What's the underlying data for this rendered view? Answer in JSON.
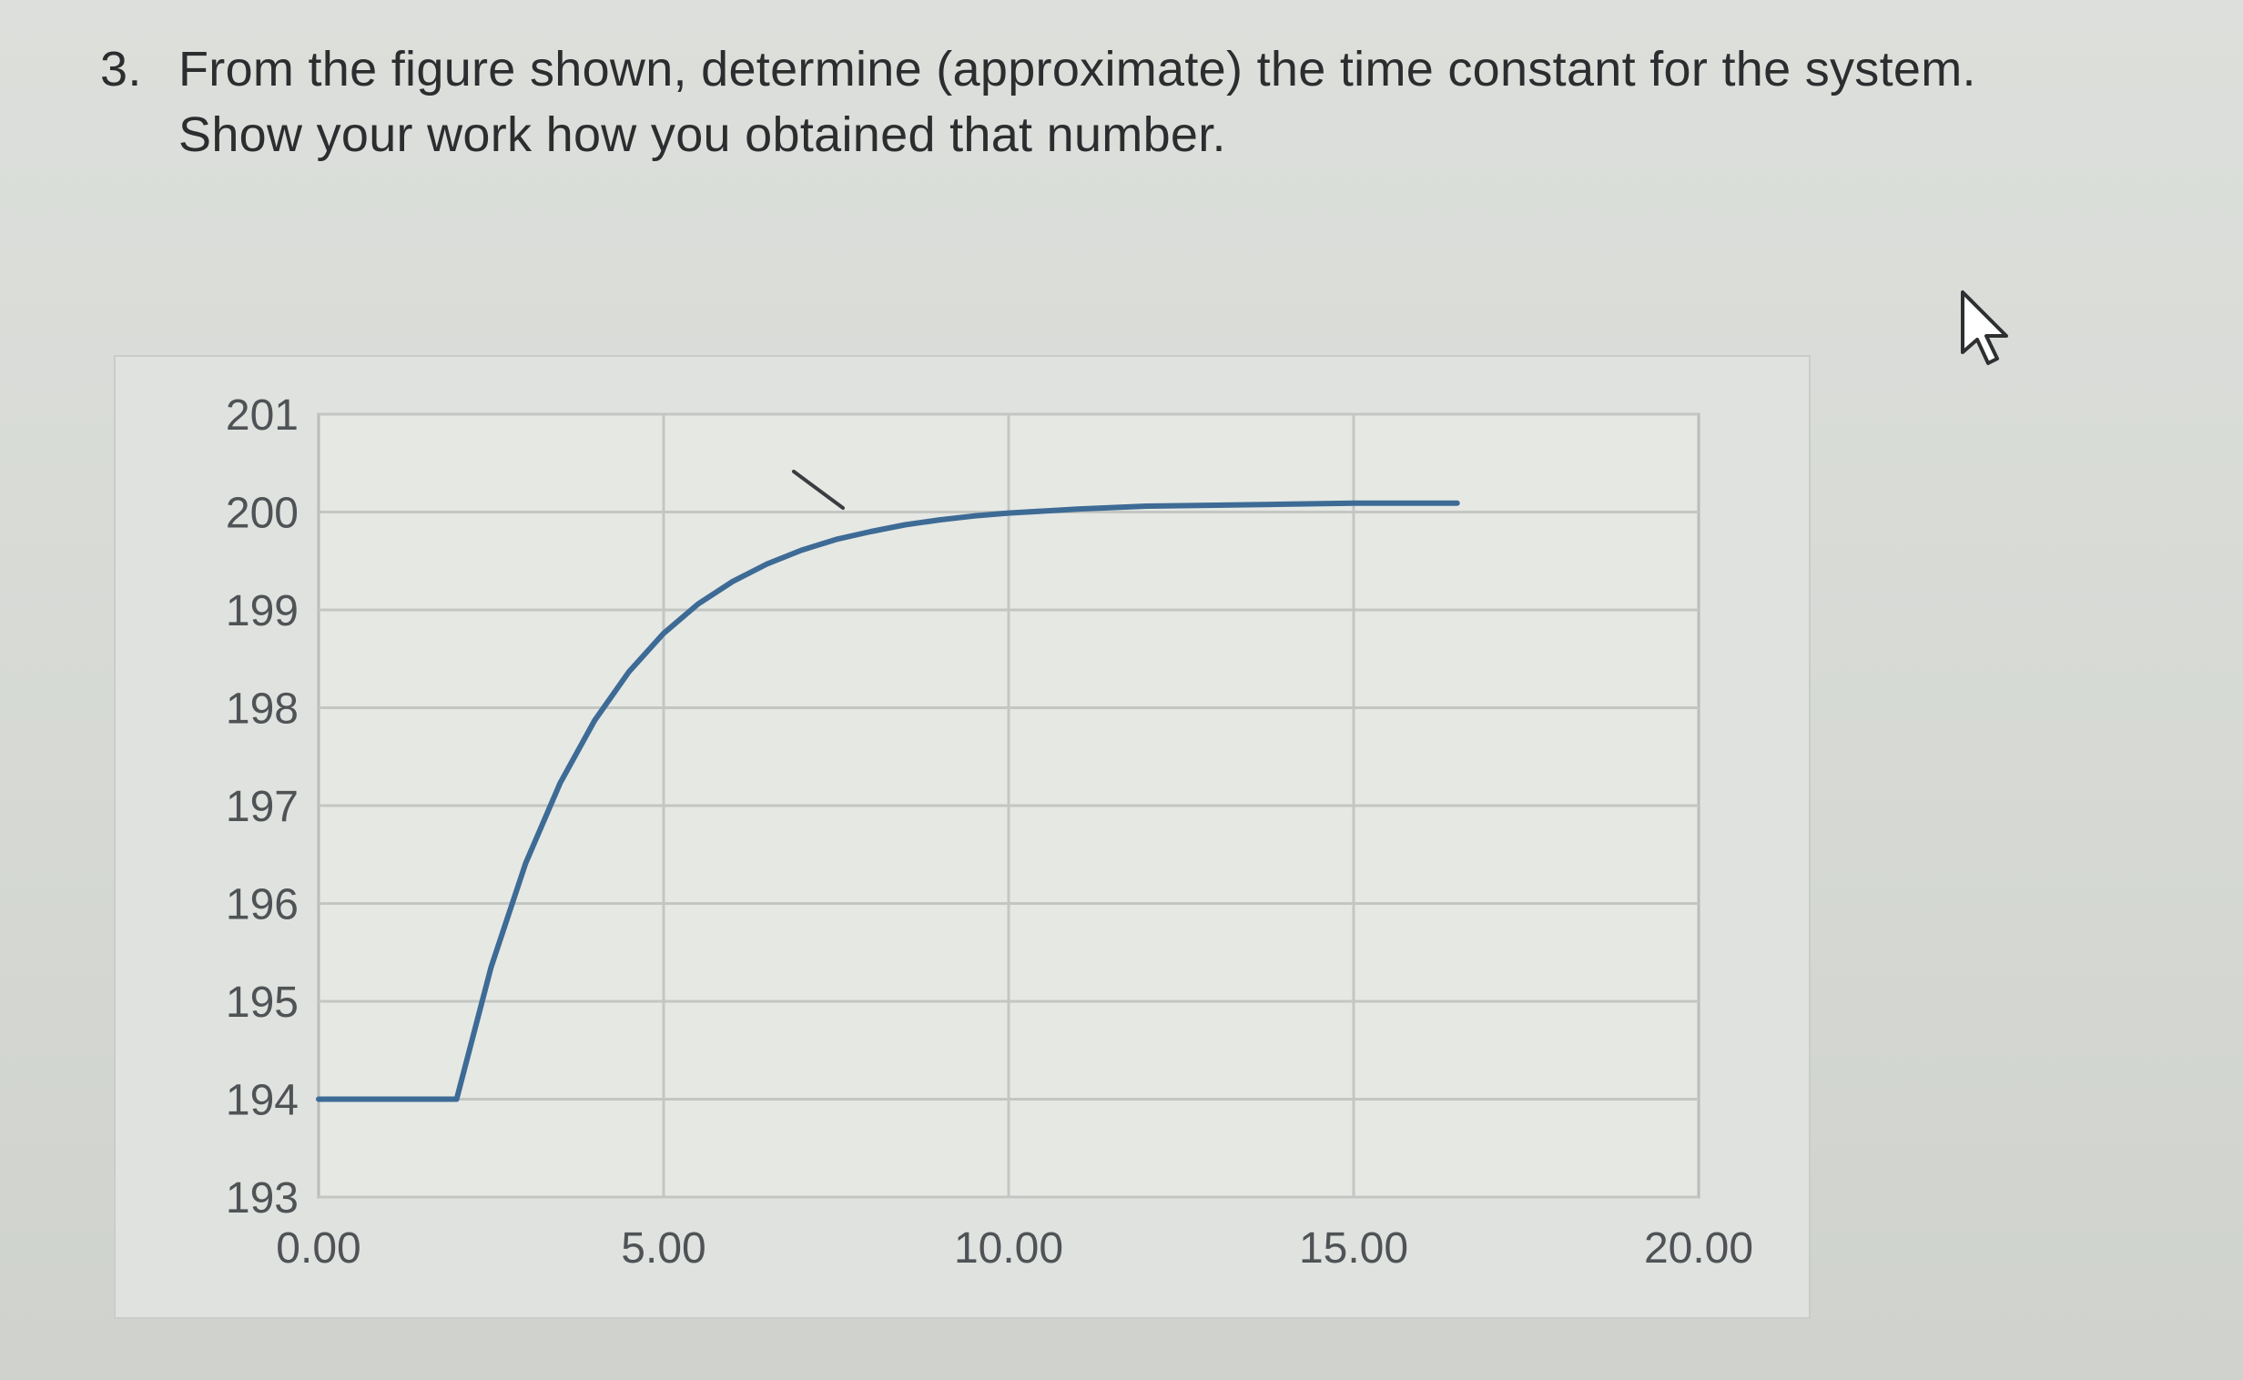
{
  "question": {
    "number": "3.",
    "line1": "From the figure shown, determine (approximate) the time constant for the system.",
    "line2": "Show your work how you obtained that number."
  },
  "chart_data": {
    "type": "line",
    "title": "",
    "xlabel": "",
    "ylabel": "",
    "xlim": [
      0,
      20
    ],
    "ylim": [
      193,
      201
    ],
    "x_ticks": [
      "0.00",
      "5.00",
      "10.00",
      "15.00",
      "20.00"
    ],
    "x_tick_values": [
      0,
      5,
      10,
      15,
      20
    ],
    "y_ticks": [
      "201",
      "200",
      "199",
      "198",
      "197",
      "196",
      "195",
      "194",
      "193"
    ],
    "y_tick_values": [
      201,
      200,
      199,
      198,
      197,
      196,
      195,
      194,
      193
    ],
    "grid": true,
    "legend": "none",
    "line_color": "#3d6b95",
    "series": [
      {
        "x": [
          0,
          0.5,
          1.0,
          1.5,
          2.0,
          2.5,
          3.0,
          3.5,
          4.0,
          4.5,
          5.0,
          5.5,
          6.0,
          6.5,
          7.0,
          7.5,
          8.0,
          8.5,
          9.0,
          9.5,
          10.0,
          11.0,
          12.0,
          13.0,
          14.0,
          15.0,
          16.0,
          16.5
        ],
        "y": [
          194.0,
          194.0,
          194.0,
          194.0,
          194.0,
          195.35,
          196.41,
          197.23,
          197.87,
          198.37,
          198.76,
          199.06,
          199.29,
          199.47,
          199.61,
          199.72,
          199.8,
          199.87,
          199.92,
          199.96,
          199.99,
          200.03,
          200.06,
          200.07,
          200.08,
          200.09,
          200.09,
          200.09
        ]
      }
    ]
  }
}
